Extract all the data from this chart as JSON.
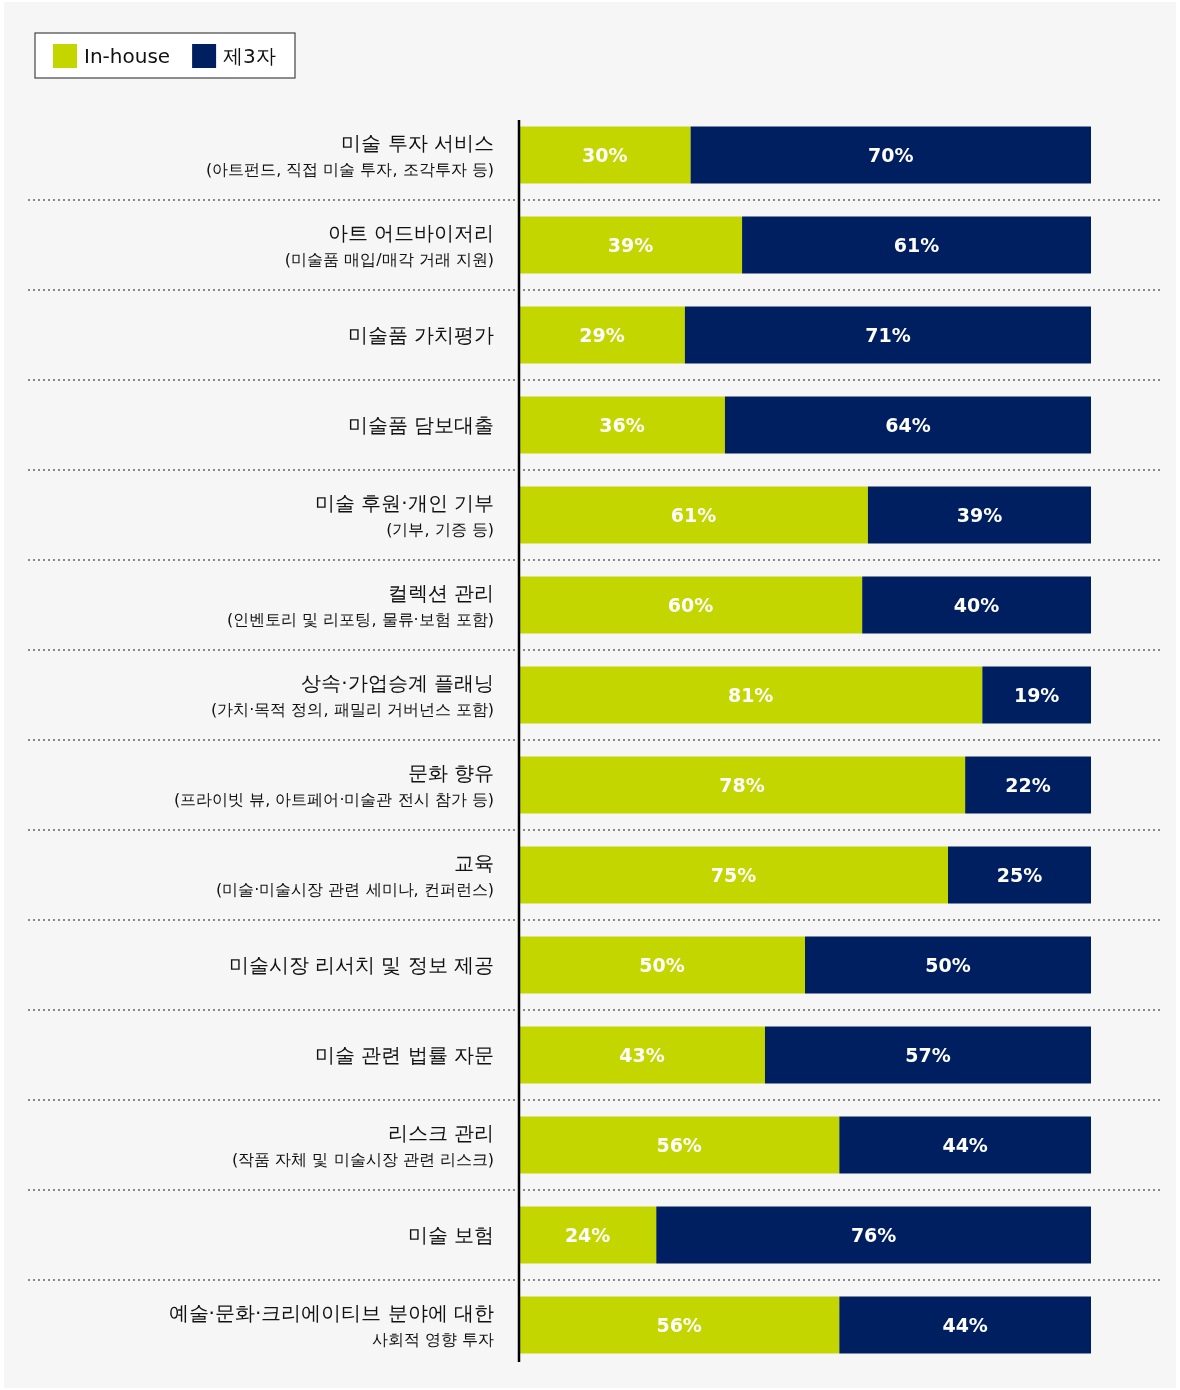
{
  "chart_data": {
    "type": "bar",
    "orientation": "horizontal",
    "stacked": true,
    "legend": "top left",
    "tick_labels": "y",
    "categories": [
      "미술 투자 서비스\n(아트펀드, 직접 미술 투자, 조각투자 등)",
      "아트 어드바이저리\n(미술품 매입/매각 거래 지원)",
      "미술품 가치평가",
      "미술품 담보대출",
      "미술 후원·개인 기부\n(기부, 기증 등)",
      "컬렉션 관리\n(인벤토리 및 리포팅, 물류·보험 포함)",
      "상속·가업승계 플래닝\n(가치·목적 정의, 패밀리 거버넌스 포함)",
      "문화 향유\n(프라이빗 뷰, 아트페어·미술관 전시 참가 등)",
      "교육\n(미술·미술시장 관련 세미나, 컨퍼런스)",
      "미술시장 리서치 및 정보 제공",
      "미술 관련 법률 자문",
      "리스크 관리\n(작품 자체 및 미술시장 관련 리스크)",
      "미술 보험",
      "예술·문화·크리에이티브 분야에 대한\n사회적 영향 투자"
    ],
    "series": [
      {
        "name": "In-house",
        "color": "#c4d600",
        "values": [
          30,
          39,
          29,
          36,
          61,
          60,
          81,
          78,
          75,
          50,
          43,
          56,
          24,
          56
        ],
        "value_labels": [
          "30%",
          "39%",
          "29%",
          "36%",
          "61%",
          "60%",
          "81%",
          "78%",
          "75%",
          "50%",
          "43%",
          "56%",
          "24%",
          "56%"
        ]
      },
      {
        "name": "제3자",
        "color": "#001f60",
        "values": [
          70,
          61,
          71,
          64,
          39,
          40,
          19,
          22,
          25,
          50,
          57,
          44,
          76,
          44
        ],
        "value_labels": [
          "70%",
          "61%",
          "71%",
          "64%",
          "39%",
          "40%",
          "19%",
          "22%",
          "25%",
          "50%",
          "57%",
          "44%",
          "76%",
          "44%"
        ]
      }
    ]
  }
}
